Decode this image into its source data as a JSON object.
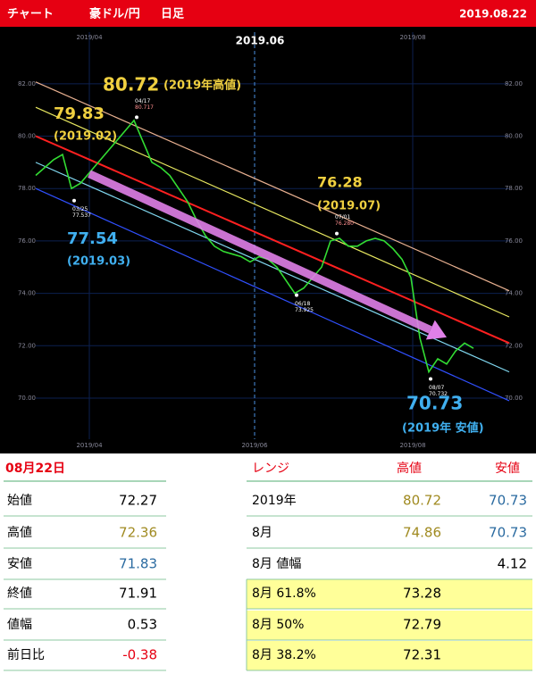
{
  "header": {
    "tab": "チャート",
    "pair": "豪ドル/円",
    "period": "日足",
    "date": "2019.08.22"
  },
  "chart_data": {
    "type": "line",
    "color": "#33dd33",
    "background": "#000000",
    "grid": true,
    "title": "2019.06",
    "values": [
      78.5,
      78.8,
      79.1,
      79.3,
      78.0,
      78.2,
      78.6,
      79.0,
      79.4,
      79.8,
      80.2,
      80.6,
      79.8,
      79.0,
      78.8,
      78.5,
      78.0,
      77.5,
      76.8,
      76.2,
      75.8,
      75.6,
      75.5,
      75.4,
      75.2,
      75.4,
      75.3,
      75.0,
      74.5,
      74.0,
      74.2,
      74.6,
      75.0,
      76.0,
      76.1,
      75.8,
      75.8,
      76.0,
      76.1,
      76.0,
      75.7,
      75.3,
      74.6,
      72.3,
      71.0,
      71.5,
      71.3,
      71.8,
      72.1,
      71.9
    ],
    "xlim": [
      0,
      53
    ],
    "xticks": [
      {
        "value": 6,
        "label": "2019/04"
      },
      {
        "value": 24.5,
        "label": "2019/06"
      },
      {
        "value": 42.2,
        "label": "2019/08"
      }
    ],
    "ylim": [
      68.5,
      83.8
    ],
    "yticks": [
      {
        "value": 70,
        "label": "70.00"
      },
      {
        "value": 72,
        "label": "72.00"
      },
      {
        "value": 74,
        "label": "74.00"
      },
      {
        "value": 76,
        "label": "76.00"
      },
      {
        "value": 78,
        "label": "78.00"
      },
      {
        "value": 80,
        "label": "80.00"
      },
      {
        "value": 82,
        "label": "82.00"
      }
    ],
    "channels": [
      {
        "color": "#e8b090",
        "start": 82.07,
        "end": 74.1
      },
      {
        "color": "#e8e860",
        "start": 81.1,
        "end": 73.1
      },
      {
        "color": "#ff2020",
        "start": 80.0,
        "end": 72.1
      },
      {
        "color": "#80d8f0",
        "start": 79.0,
        "end": 71.0
      },
      {
        "color": "#3050ff",
        "start": 78.0,
        "end": 69.9
      }
    ],
    "trend_arrow": {
      "color": "#e080e8",
      "start_x": 6,
      "start": 78.56,
      "end_x": 46,
      "end": 72.32
    },
    "annotations": [
      {
        "value": "80.72",
        "note": "(2019年高値)",
        "color": "#f0d040"
      },
      {
        "value": "79.83",
        "note": "(2019.02)",
        "color": "#f0d040"
      },
      {
        "value": "77.54",
        "note": "(2019.03)",
        "color": "#40b0f0"
      },
      {
        "value": "76.28",
        "note": "(2019.07)",
        "color": "#f0d040"
      },
      {
        "value": "70.73",
        "note": "(2019年 安値)",
        "color": "#40b0f0"
      }
    ],
    "points": [
      {
        "date": "04/17",
        "price": "80.717",
        "x": 11.3,
        "y": 80.72
      },
      {
        "date": "03/25",
        "price": "77.537",
        "x": 4.3,
        "y": 77.54
      },
      {
        "date": "07/01",
        "price": "76.280",
        "x": 33.7,
        "y": 76.28
      },
      {
        "date": "06/18",
        "price": "73.925",
        "x": 29.2,
        "y": 73.93
      },
      {
        "date": "08/07",
        "price": "70.732",
        "x": 44.2,
        "y": 70.73
      }
    ]
  },
  "day_table": {
    "title": "08月22日",
    "rows": [
      [
        "始値",
        "72.27"
      ],
      [
        "高値",
        "72.36"
      ],
      [
        "安値",
        "71.83"
      ],
      [
        "終値",
        "71.91"
      ],
      [
        "値幅",
        "0.53"
      ],
      [
        "前日比",
        "-0.38"
      ]
    ]
  },
  "range_table": {
    "header": [
      "レンジ",
      "高値",
      "安値"
    ],
    "rows": [
      [
        "2019年",
        "80.72",
        "70.73"
      ],
      [
        "8月",
        "74.86",
        "70.73"
      ],
      [
        "8月 値幅",
        null,
        "4.12"
      ],
      [
        "8月 61.8%",
        "73.28",
        null
      ],
      [
        "8月 50%",
        "72.79",
        null
      ],
      [
        "8月 38.2%",
        "72.31",
        null
      ]
    ]
  }
}
